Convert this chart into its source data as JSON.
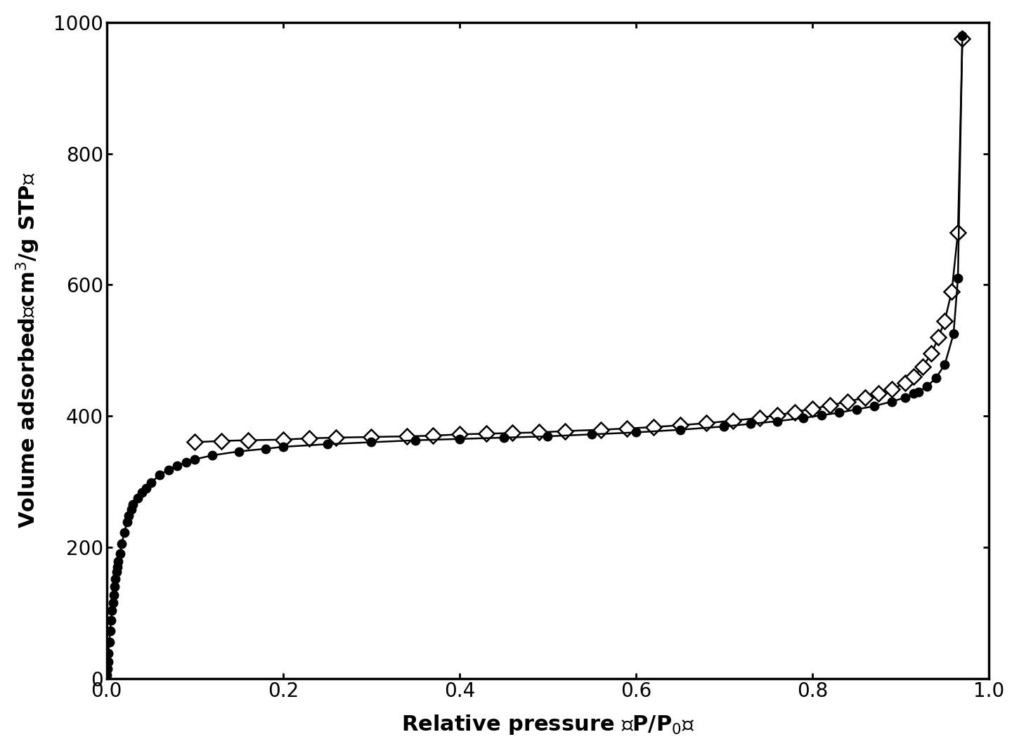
{
  "xlabel": "Relative pressure （P/P₀）",
  "ylabel": "Volume adsorbed （cm³/g STP）",
  "xlim": [
    0.0,
    1.0
  ],
  "ylim": [
    0,
    1000
  ],
  "yticks": [
    0,
    200,
    400,
    600,
    800,
    1000
  ],
  "xticks": [
    0.0,
    0.2,
    0.4,
    0.6,
    0.8,
    1.0
  ],
  "background_color": "#ffffff",
  "series1_x": [
    0.0005,
    0.001,
    0.0015,
    0.002,
    0.003,
    0.004,
    0.005,
    0.006,
    0.007,
    0.008,
    0.009,
    0.01,
    0.011,
    0.012,
    0.013,
    0.015,
    0.017,
    0.02,
    0.023,
    0.025,
    0.028,
    0.03,
    0.035,
    0.04,
    0.045,
    0.05,
    0.06,
    0.07,
    0.08,
    0.09,
    0.1,
    0.12,
    0.15,
    0.18,
    0.2,
    0.25,
    0.3,
    0.35,
    0.4,
    0.45,
    0.5,
    0.55,
    0.6,
    0.65,
    0.7,
    0.73,
    0.76,
    0.79,
    0.81,
    0.83,
    0.85,
    0.87,
    0.89,
    0.905,
    0.915,
    0.92,
    0.93,
    0.94,
    0.95,
    0.96,
    0.965,
    0.97
  ],
  "series1_y": [
    5,
    15,
    25,
    38,
    55,
    72,
    88,
    103,
    115,
    127,
    140,
    152,
    162,
    170,
    178,
    190,
    205,
    222,
    238,
    248,
    258,
    265,
    275,
    283,
    290,
    298,
    310,
    318,
    324,
    329,
    334,
    340,
    346,
    350,
    353,
    357,
    360,
    363,
    365,
    367,
    369,
    372,
    375,
    379,
    384,
    388,
    392,
    397,
    401,
    405,
    410,
    415,
    422,
    428,
    434,
    437,
    445,
    458,
    478,
    525,
    610,
    980
  ],
  "series1_marker": "o",
  "series1_markersize": 9,
  "series1_color": "#000000",
  "series2_x": [
    0.1,
    0.13,
    0.16,
    0.2,
    0.23,
    0.26,
    0.3,
    0.34,
    0.37,
    0.4,
    0.43,
    0.46,
    0.49,
    0.52,
    0.56,
    0.59,
    0.62,
    0.65,
    0.68,
    0.71,
    0.74,
    0.76,
    0.78,
    0.8,
    0.82,
    0.84,
    0.86,
    0.875,
    0.89,
    0.905,
    0.915,
    0.925,
    0.935,
    0.943,
    0.95,
    0.958,
    0.965,
    0.97
  ],
  "series2_y": [
    360,
    362,
    363,
    364,
    366,
    367,
    368,
    369,
    370,
    372,
    373,
    374,
    375,
    377,
    379,
    381,
    383,
    386,
    389,
    393,
    397,
    401,
    406,
    411,
    416,
    422,
    428,
    434,
    441,
    450,
    460,
    475,
    495,
    520,
    545,
    590,
    680,
    975
  ],
  "series2_marker": "D",
  "series2_markersize": 11,
  "series2_color": "#000000",
  "xlabel_fontsize": 22,
  "ylabel_fontsize": 22,
  "tick_labelsize": 20
}
